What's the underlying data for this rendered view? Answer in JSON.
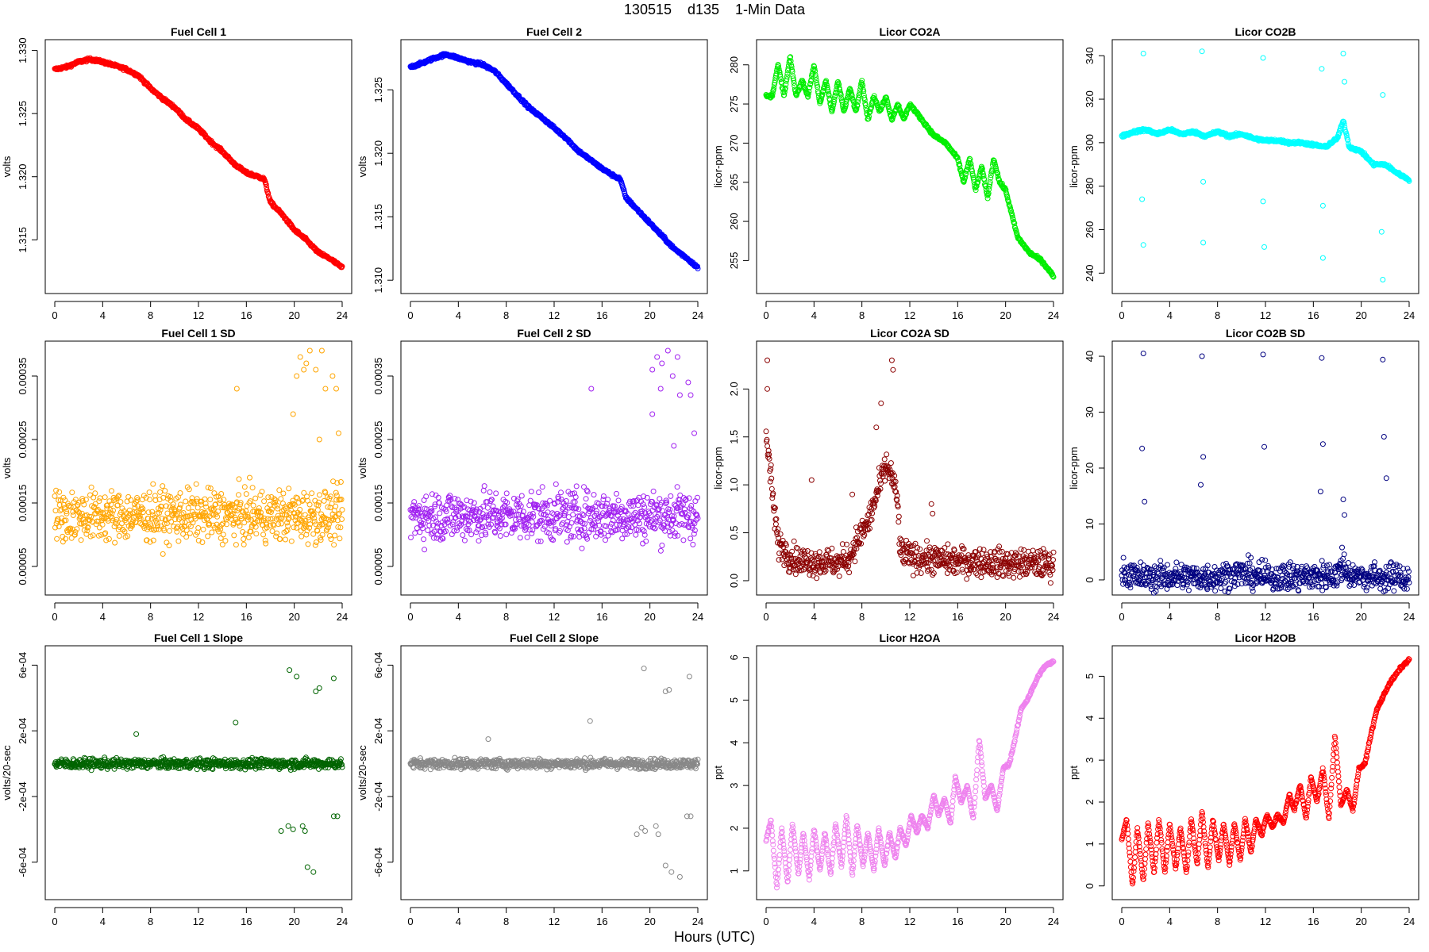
{
  "title": "130515    d135    1-Min Data",
  "xlabel": "Hours (UTC)",
  "x_ticks": [
    0,
    4,
    8,
    12,
    16,
    20,
    24
  ],
  "chart_data": [
    {
      "type": "scatter",
      "title": "Fuel Cell 1",
      "ylabel": "volts",
      "color": "#ff0000",
      "xlim": [
        0,
        24
      ],
      "ylim": [
        1.3115,
        1.3301
      ],
      "ytick_values": [
        1.315,
        1.32,
        1.325,
        1.33
      ],
      "ytick_labels": [
        "1.315",
        "1.320",
        "1.325",
        "1.330"
      ],
      "x": [
        0,
        1,
        2,
        3,
        4,
        5,
        6,
        7,
        8,
        9,
        10,
        11,
        12,
        13,
        14,
        15,
        16,
        17,
        17.5,
        18,
        19,
        20,
        21,
        22,
        23,
        24
      ],
      "y": [
        1.3285,
        1.3287,
        1.3291,
        1.3293,
        1.3291,
        1.3288,
        1.3285,
        1.328,
        1.327,
        1.3262,
        1.3255,
        1.3245,
        1.3238,
        1.3228,
        1.322,
        1.321,
        1.3203,
        1.32,
        1.3198,
        1.318,
        1.317,
        1.3158,
        1.315,
        1.314,
        1.3135,
        1.3128
      ]
    },
    {
      "type": "scatter",
      "title": "Fuel Cell 2",
      "ylabel": "volts",
      "color": "#0000ff",
      "xlim": [
        0,
        24
      ],
      "ylim": [
        1.3097,
        1.3282
      ],
      "ytick_values": [
        1.31,
        1.315,
        1.32,
        1.325
      ],
      "ytick_labels": [
        "1.310",
        "1.315",
        "1.320",
        "1.325"
      ],
      "x": [
        0,
        1,
        2,
        3,
        4,
        5,
        6,
        7,
        8,
        9,
        10,
        11,
        12,
        13,
        14,
        15,
        16,
        17,
        17.5,
        18,
        19,
        20,
        21,
        22,
        23,
        24
      ],
      "y": [
        1.3268,
        1.3271,
        1.3275,
        1.3278,
        1.3275,
        1.3272,
        1.327,
        1.3265,
        1.3255,
        1.3245,
        1.3235,
        1.3228,
        1.322,
        1.3212,
        1.3202,
        1.3195,
        1.3188,
        1.3182,
        1.318,
        1.3165,
        1.3155,
        1.3145,
        1.3135,
        1.3125,
        1.3118,
        1.311
      ]
    },
    {
      "type": "scatter",
      "title": "Licor CO2A",
      "ylabel": "licor-ppm",
      "color": "#00ee00",
      "xlim": [
        0,
        24
      ],
      "ylim": [
        252,
        282
      ],
      "ytick_values": [
        255,
        260,
        265,
        270,
        275,
        280
      ],
      "ytick_labels": [
        "255",
        "260",
        "265",
        "270",
        "275",
        "280"
      ],
      "x": [
        0,
        0.5,
        1,
        1.5,
        2,
        2.5,
        3,
        3.5,
        4,
        4.5,
        5,
        5.5,
        6,
        6.5,
        7,
        7.5,
        8,
        8.5,
        9,
        9.5,
        10,
        10.5,
        11,
        11.5,
        12,
        13,
        14,
        15,
        16,
        16.5,
        17,
        17.5,
        18,
        18.5,
        19,
        19.5,
        20,
        21,
        22,
        23,
        24
      ],
      "y": [
        276,
        276,
        280,
        276,
        281,
        276,
        278,
        276,
        280,
        275,
        278,
        274,
        278,
        274,
        277,
        274,
        278,
        273,
        276,
        274,
        276,
        273,
        275,
        273,
        275,
        273,
        271,
        270,
        268,
        265,
        268,
        264,
        267,
        263,
        268,
        265,
        264,
        258,
        256,
        255,
        253
      ]
    },
    {
      "type": "scatter",
      "title": "Licor CO2B",
      "ylabel": "licor-ppm",
      "color": "#00ffff",
      "xlim": [
        0,
        24
      ],
      "ylim": [
        235,
        343
      ],
      "ytick_values": [
        240,
        260,
        280,
        300,
        320,
        340
      ],
      "ytick_labels": [
        "240",
        "260",
        "280",
        "300",
        "320",
        "340"
      ],
      "x": [
        0,
        1,
        2,
        3,
        4,
        5,
        6,
        7,
        8,
        9,
        10,
        11,
        12,
        13,
        14,
        15,
        16,
        17,
        18,
        18.5,
        19,
        20,
        21,
        22,
        23,
        24
      ],
      "y": [
        303,
        305,
        306,
        304,
        306,
        304,
        305,
        303,
        305,
        303,
        304,
        302,
        301,
        301,
        300,
        300,
        299,
        298,
        302,
        310,
        298,
        296,
        290,
        290,
        286,
        283
      ],
      "outliers_x": [
        1.8,
        1.8,
        1.7,
        6.7,
        6.8,
        6.8,
        11.8,
        11.9,
        11.8,
        16.7,
        16.8,
        16.8,
        21.8,
        21.8,
        21.7,
        18.5,
        18.6
      ],
      "outliers_y": [
        341,
        253,
        274,
        342,
        254,
        282,
        339,
        252,
        273,
        334,
        247,
        271,
        322,
        237,
        259,
        341,
        328
      ]
    },
    {
      "type": "scatter",
      "title": "Fuel Cell 1 SD",
      "ylabel": "volts",
      "color": "#ffa500",
      "xlim": [
        0,
        24
      ],
      "ylim": [
        2e-05,
        0.00039
      ],
      "ytick_values": [
        5e-05,
        0.00015,
        0.00025,
        0.00035
      ],
      "ytick_labels": [
        "0.00005",
        "0.00015",
        "0.00025",
        "0.00035"
      ],
      "center": 0.00013,
      "spread": 4e-05,
      "outliers_x": [
        20.2,
        20.5,
        21,
        21.3,
        21.8,
        22.3,
        22.6,
        20.8,
        23.2,
        23.5,
        15.2,
        19.9,
        22.1,
        23.7
      ],
      "outliers_y": [
        0.00035,
        0.00038,
        0.00037,
        0.00039,
        0.00036,
        0.00039,
        0.00033,
        0.00036,
        0.00035,
        0.00033,
        0.00033,
        0.00029,
        0.00025,
        0.00026
      ]
    },
    {
      "type": "scatter",
      "title": "Fuel Cell 2 SD",
      "ylabel": "volts",
      "color": "#a020f0",
      "xlim": [
        0,
        24
      ],
      "ylim": [
        2e-05,
        0.00039
      ],
      "ytick_values": [
        5e-05,
        0.00015,
        0.00025,
        0.00035
      ],
      "ytick_labels": [
        "0.00005",
        "0.00015",
        "0.00025",
        "0.00035"
      ],
      "center": 0.00013,
      "spread": 4e-05,
      "outliers_x": [
        20.2,
        20.6,
        21,
        21.5,
        21.9,
        22.3,
        22.5,
        20.9,
        23.2,
        23.4,
        15.1,
        20.2,
        22.0,
        23.7
      ],
      "outliers_y": [
        0.00036,
        0.00038,
        0.00037,
        0.00039,
        0.00035,
        0.00038,
        0.00032,
        0.00033,
        0.00034,
        0.00032,
        0.00033,
        0.00029,
        0.00024,
        0.00026
      ]
    },
    {
      "type": "scatter",
      "title": "Licor CO2A SD",
      "ylabel": "licor-ppm",
      "color": "#8b0000",
      "xlim": [
        0,
        24
      ],
      "ylim": [
        -0.05,
        2.4
      ],
      "ytick_values": [
        0.0,
        0.5,
        1.0,
        1.5,
        2.0
      ],
      "ytick_labels": [
        "0.0",
        "0.5",
        "1.0",
        "1.5",
        "2.0"
      ],
      "x": [
        0,
        0.3,
        0.6,
        1,
        2,
        3,
        4,
        5,
        6,
        7,
        7.5,
        8,
        8.5,
        9,
        9.5,
        10,
        10.5,
        11,
        11.2,
        12,
        14,
        16,
        18,
        20,
        22,
        24
      ],
      "y": [
        1.5,
        1.2,
        0.8,
        0.4,
        0.25,
        0.2,
        0.2,
        0.2,
        0.18,
        0.25,
        0.4,
        0.5,
        0.6,
        0.8,
        1.0,
        1.2,
        1.1,
        0.8,
        0.3,
        0.25,
        0.22,
        0.2,
        0.2,
        0.18,
        0.18,
        0.17
      ],
      "outliers_x": [
        0.1,
        0.1,
        10.5,
        10.6,
        9.2,
        9.6,
        13.8,
        13.9,
        3.8,
        7.2
      ],
      "outliers_y": [
        2.3,
        2.0,
        2.3,
        2.2,
        1.6,
        1.85,
        0.8,
        0.7,
        1.05,
        0.9
      ]
    },
    {
      "type": "scatter",
      "title": "Licor CO2B SD",
      "ylabel": "licor-ppm",
      "color": "#000080",
      "xlim": [
        0,
        24
      ],
      "ylim": [
        -1,
        41
      ],
      "ytick_values": [
        0,
        10,
        20,
        30,
        40
      ],
      "ytick_labels": [
        "0",
        "10",
        "20",
        "30",
        "40"
      ],
      "x": [
        0,
        0.5,
        1,
        2,
        4,
        6,
        8,
        9,
        10,
        11,
        12,
        14,
        16,
        18,
        18.5,
        19,
        20,
        22,
        24
      ],
      "y": [
        1.6,
        1.2,
        0.6,
        0.4,
        0.6,
        0.5,
        0.6,
        0.9,
        1.2,
        0.8,
        0.4,
        0.5,
        0.6,
        1.0,
        2.5,
        1.0,
        0.6,
        0.4,
        0.3
      ],
      "outliers_x": [
        1.8,
        1.7,
        1.9,
        6.7,
        6.8,
        6.6,
        11.8,
        11.9,
        16.7,
        16.8,
        16.6,
        21.8,
        21.9,
        22.1,
        18.5,
        18.6,
        18.4
      ],
      "outliers_y": [
        40.5,
        23.5,
        14,
        40,
        22,
        17,
        40.3,
        23.8,
        39.7,
        24.3,
        15.8,
        39.4,
        25.6,
        18.2,
        14.4,
        11.6,
        5.8
      ]
    },
    {
      "type": "scatter",
      "title": "Fuel Cell 1 Slope",
      "ylabel": "volts/20-sec",
      "color": "#006400",
      "xlim": [
        0,
        24
      ],
      "ylim": [
        -0.00077,
        0.00066
      ],
      "ytick_values": [
        -0.0006,
        -0.0002,
        0.0002,
        0.0006
      ],
      "ytick_labels": [
        "-6e-04",
        "-2e-04",
        "2e-04",
        "6e-04"
      ],
      "center": 0,
      "spread": 3e-05,
      "outliers_x": [
        19.6,
        20.2,
        21.8,
        22.1,
        23.3,
        15.1,
        6.8,
        18.9,
        19.5,
        19.9,
        20.7,
        20.9,
        21.1,
        21.6,
        23.3,
        23.6
      ],
      "outliers_y": [
        0.00057,
        0.00053,
        0.00044,
        0.00046,
        0.00052,
        0.00025,
        0.00018,
        -0.00041,
        -0.00038,
        -0.0004,
        -0.00038,
        -0.00041,
        -0.00063,
        -0.00066,
        -0.00032,
        -0.00032
      ]
    },
    {
      "type": "scatter",
      "title": "Fuel Cell 2 Slope",
      "ylabel": "volts/20-sec",
      "color": "#888888",
      "xlim": [
        0,
        24
      ],
      "ylim": [
        -0.00077,
        0.00066
      ],
      "ytick_values": [
        -0.0006,
        -0.0002,
        0.0002,
        0.0006
      ],
      "ytick_labels": [
        "-6e-04",
        "-2e-04",
        "2e-04",
        "6e-04"
      ],
      "center": 0,
      "spread": 3e-05,
      "outliers_x": [
        19.5,
        21.3,
        21.6,
        23.3,
        15.0,
        6.5,
        18.9,
        19.3,
        19.6,
        20.5,
        20.7,
        21.3,
        21.8,
        22.5,
        23.1,
        23.4
      ],
      "outliers_y": [
        0.00058,
        0.00044,
        0.00045,
        0.00053,
        0.00026,
        0.00015,
        -0.00043,
        -0.00039,
        -0.00041,
        -0.00038,
        -0.00043,
        -0.00062,
        -0.00066,
        -0.00069,
        -0.00032,
        -0.00032
      ]
    },
    {
      "type": "scatter",
      "title": "Licor H2OA",
      "ylabel": "ppt",
      "color": "#ee82ee",
      "xlim": [
        0,
        24
      ],
      "ylim": [
        0.55,
        6.05
      ],
      "ytick_values": [
        1,
        2,
        3,
        4,
        5,
        6
      ],
      "ytick_labels": [
        "1",
        "2",
        "3",
        "4",
        "5",
        "6"
      ],
      "x": [
        0,
        0.4,
        0.9,
        1.3,
        1.8,
        2.2,
        2.7,
        3.1,
        3.6,
        4.0,
        4.5,
        4.9,
        5.4,
        5.8,
        6.3,
        6.7,
        7.2,
        7.6,
        8.1,
        8.5,
        9.0,
        9.4,
        9.9,
        10.3,
        10.8,
        11.2,
        11.7,
        12.1,
        12.6,
        13.0,
        13.5,
        14.0,
        14.4,
        14.9,
        15.4,
        15.8,
        16.3,
        16.8,
        17.3,
        17.8,
        18.3,
        18.8,
        19.3,
        19.8,
        20.3,
        20.8,
        21.3,
        21.8,
        22.3,
        22.8,
        23.3,
        24
      ],
      "y": [
        1.7,
        2.2,
        0.6,
        2.0,
        0.7,
        2.1,
        0.9,
        1.9,
        0.8,
        2.0,
        1.0,
        1.9,
        0.9,
        2.1,
        1.1,
        2.3,
        0.9,
        2.1,
        1.1,
        1.9,
        1.0,
        2.0,
        1.1,
        1.9,
        1.3,
        2.0,
        1.6,
        2.3,
        1.9,
        2.3,
        2.0,
        2.8,
        2.3,
        2.7,
        2.1,
        3.2,
        2.6,
        3.0,
        2.2,
        4.1,
        2.7,
        3.0,
        2.4,
        3.4,
        3.5,
        4.1,
        4.8,
        5.0,
        5.3,
        5.6,
        5.8,
        5.9
      ]
    },
    {
      "type": "scatter",
      "title": "Licor H2OB",
      "ylabel": "ppt",
      "color": "#ff0000",
      "xlim": [
        0,
        24
      ],
      "ylim": [
        -0.1,
        5.5
      ],
      "ytick_values": [
        0,
        1,
        2,
        3,
        4,
        5
      ],
      "ytick_labels": [
        "0",
        "1",
        "2",
        "3",
        "4",
        "5"
      ],
      "x": [
        0,
        0.4,
        0.9,
        1.3,
        1.8,
        2.2,
        2.7,
        3.1,
        3.6,
        4.0,
        4.5,
        4.9,
        5.4,
        5.8,
        6.3,
        6.7,
        7.2,
        7.6,
        8.1,
        8.5,
        9.0,
        9.4,
        9.9,
        10.3,
        10.8,
        11.2,
        11.7,
        12.1,
        12.6,
        13.0,
        13.5,
        14.0,
        14.4,
        14.9,
        15.4,
        15.8,
        16.3,
        16.8,
        17.3,
        17.8,
        18.3,
        18.8,
        19.3,
        19.8,
        20.3,
        20.8,
        21.3,
        21.8,
        22.3,
        22.8,
        23.3,
        24
      ],
      "y": [
        1.1,
        1.6,
        0.0,
        1.4,
        0.1,
        1.5,
        0.3,
        1.6,
        0.3,
        1.5,
        0.4,
        1.4,
        0.3,
        1.6,
        0.5,
        1.8,
        0.4,
        1.6,
        0.6,
        1.5,
        0.5,
        1.5,
        0.6,
        1.6,
        0.8,
        1.6,
        1.2,
        1.7,
        1.4,
        1.7,
        1.5,
        2.2,
        1.8,
        2.4,
        1.6,
        2.6,
        2.0,
        2.8,
        1.6,
        3.6,
        1.9,
        2.3,
        1.8,
        2.8,
        2.9,
        3.6,
        4.2,
        4.5,
        4.8,
        5.0,
        5.2,
        5.4
      ]
    }
  ]
}
